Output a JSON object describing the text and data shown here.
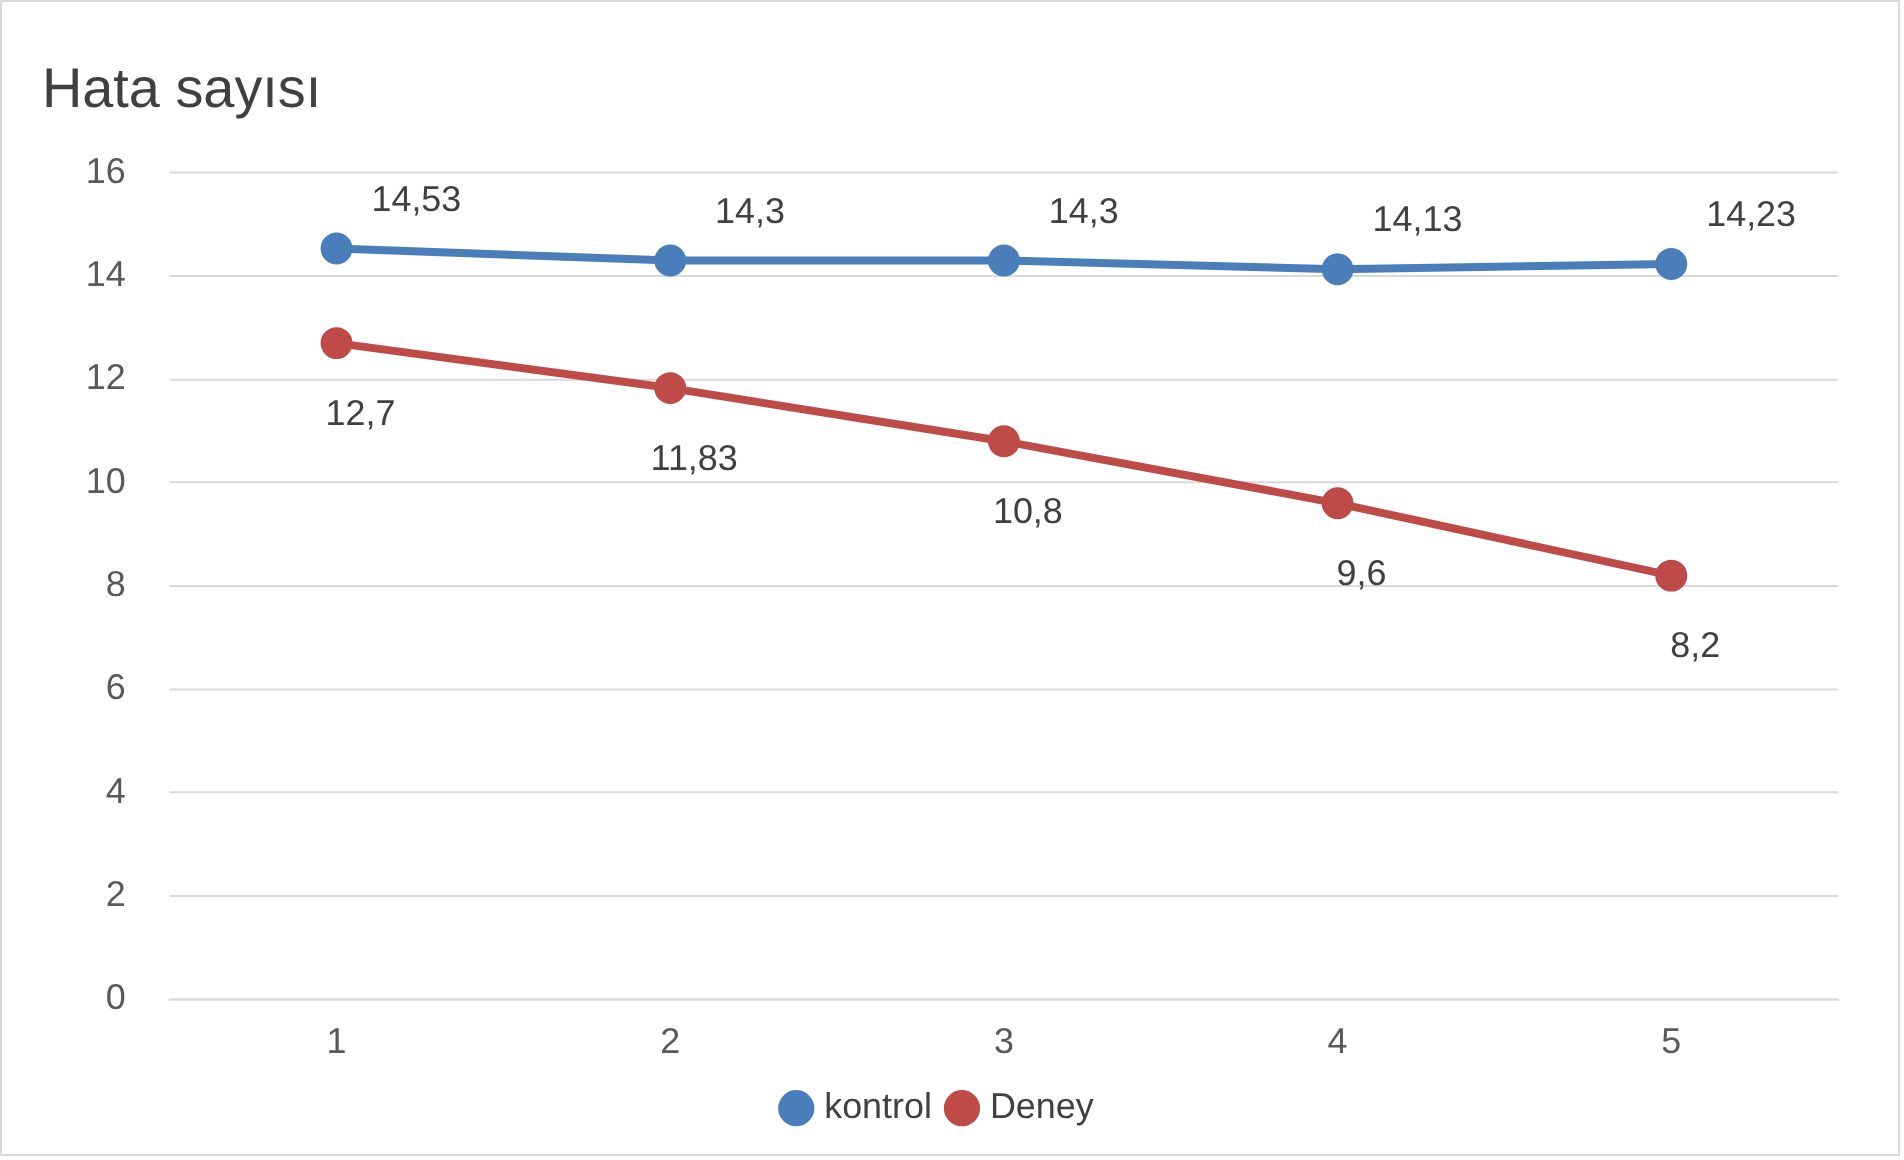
{
  "chart_data": {
    "type": "line",
    "title": "Hata sayısı",
    "categories": [
      "1",
      "2",
      "3",
      "4",
      "5"
    ],
    "series": [
      {
        "name": "kontrol",
        "color": "#4a7ebb",
        "values": [
          14.53,
          14.3,
          14.3,
          14.13,
          14.23
        ],
        "value_labels": [
          "14,53",
          "14,3",
          "14,3",
          "14,13",
          "14,23"
        ]
      },
      {
        "name": "Deney",
        "color": "#be4b48",
        "values": [
          12.7,
          11.83,
          10.8,
          9.6,
          8.2
        ],
        "value_labels": [
          "12,7",
          "11,83",
          "10,8",
          "9,6",
          "8,2"
        ]
      }
    ],
    "ylim": [
      0,
      16
    ],
    "yticks": [
      0,
      2,
      4,
      6,
      8,
      10,
      12,
      14,
      16
    ],
    "grid": "y",
    "legend": "bottom",
    "marker": "circle",
    "line_style": "solid"
  }
}
